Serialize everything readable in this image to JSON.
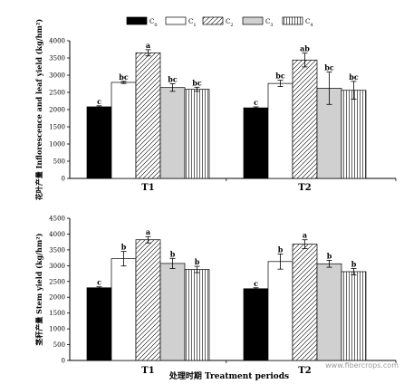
{
  "legend": {
    "entries": [
      {
        "label": "C",
        "sub": "0",
        "style": "black"
      },
      {
        "label": "C",
        "sub": "1",
        "style": "white"
      },
      {
        "label": "C",
        "sub": "2",
        "style": "hatch"
      },
      {
        "label": "C",
        "sub": "3",
        "style": "gray"
      },
      {
        "label": "C",
        "sub": "4",
        "style": "vlines"
      }
    ]
  },
  "x_axis_label": "处理时期  Treatment periods",
  "watermark": "www.fibercrops.com",
  "colors": {
    "black": "#000000",
    "gray": "#d0d0d0",
    "white": "#ffffff"
  },
  "chart_data": [
    {
      "type": "bar",
      "ylabel_cn": "花叶产量",
      "ylabel_en": "Inflorescence and leaf yield (kg/hm²)",
      "categories": [
        "T1",
        "T2"
      ],
      "ylim": [
        0,
        4000
      ],
      "yticks": [
        0,
        500,
        1000,
        1500,
        2000,
        2500,
        3000,
        3500,
        4000
      ],
      "series": [
        {
          "name": "C0",
          "values": [
            2080,
            2050
          ],
          "errors": [
            30,
            30
          ],
          "labels": [
            "c",
            "c"
          ]
        },
        {
          "name": "C1",
          "values": [
            2790,
            2760
          ],
          "errors": [
            30,
            90
          ],
          "labels": [
            "bc",
            "bc"
          ]
        },
        {
          "name": "C2",
          "values": [
            3650,
            3440
          ],
          "errors": [
            90,
            200
          ],
          "labels": [
            "a",
            "ab"
          ]
        },
        {
          "name": "C3",
          "values": [
            2640,
            2620
          ],
          "errors": [
            110,
            470
          ],
          "labels": [
            "bc",
            "bc"
          ]
        },
        {
          "name": "C4",
          "values": [
            2590,
            2560
          ],
          "errors": [
            60,
            260
          ],
          "labels": [
            "bc",
            "bc"
          ]
        }
      ]
    },
    {
      "type": "bar",
      "ylabel_cn": "茎秆产量",
      "ylabel_en": "Stem yield (kg/hm²)",
      "categories": [
        "T1",
        "T2"
      ],
      "ylim": [
        0,
        4500
      ],
      "yticks": [
        0,
        500,
        1000,
        1500,
        2000,
        2500,
        3000,
        3500,
        4000,
        4500
      ],
      "series": [
        {
          "name": "C0",
          "values": [
            2300,
            2270
          ],
          "errors": [
            30,
            30
          ],
          "labels": [
            "c",
            "c"
          ]
        },
        {
          "name": "C1",
          "values": [
            3220,
            3130
          ],
          "errors": [
            230,
            240
          ],
          "labels": [
            "b",
            "b"
          ]
        },
        {
          "name": "C2",
          "values": [
            3820,
            3680
          ],
          "errors": [
            100,
            140
          ],
          "labels": [
            "a",
            "a"
          ]
        },
        {
          "name": "C3",
          "values": [
            3070,
            3060
          ],
          "errors": [
            160,
            110
          ],
          "labels": [
            "b",
            "b"
          ]
        },
        {
          "name": "C4",
          "values": [
            2880,
            2810
          ],
          "errors": [
            100,
            100
          ],
          "labels": [
            "b",
            "b"
          ]
        }
      ]
    }
  ]
}
